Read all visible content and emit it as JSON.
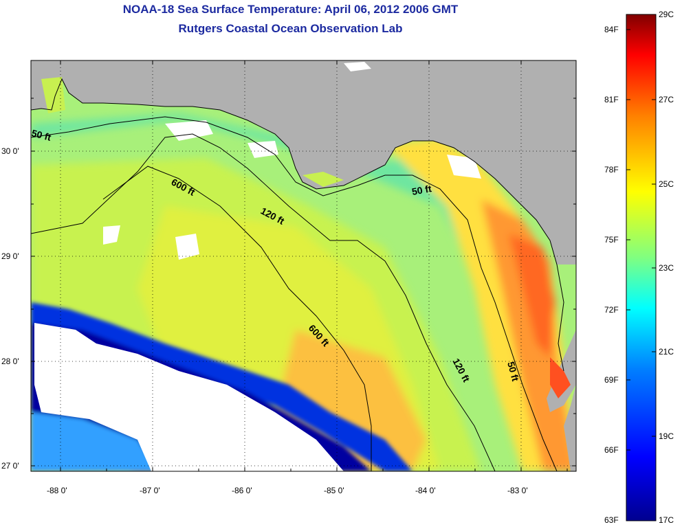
{
  "title": {
    "line1": "NOAA-18 Sea Surface Temperature:  April 06, 2012 2006 GMT",
    "line2": "Rutgers Coastal Ocean Observation Lab"
  },
  "map": {
    "lon_range": [
      -88.33,
      -82.52
    ],
    "lat_range": [
      26.95,
      30.86
    ],
    "lon_ticks": [
      "-88 0'",
      "-87 0'",
      "-86 0'",
      "-85 0'",
      "-84 0'",
      "-83 0'"
    ],
    "lat_ticks": [
      "30 0'",
      "29 0'",
      "28 0'",
      "27 0'"
    ],
    "contour_labels": [
      "50 ft",
      "600 ft",
      "120 ft",
      "50 ft",
      "600 ft",
      "120 ft",
      "50 ft"
    ],
    "land_color": "#b0b0b0",
    "cloud_color": "#ffffff"
  },
  "colorbar": {
    "fahrenheit_labels": [
      "84F",
      "81F",
      "78F",
      "75F",
      "72F",
      "69F",
      "66F",
      "63F"
    ],
    "celsius_labels": [
      "29C",
      "27C",
      "25C",
      "23C",
      "21C",
      "19C",
      "17C"
    ],
    "colors": [
      "#00008f",
      "#0000ff",
      "#0080ff",
      "#00ffff",
      "#80ff80",
      "#ffff00",
      "#ff8000",
      "#ff0000",
      "#800000"
    ]
  }
}
